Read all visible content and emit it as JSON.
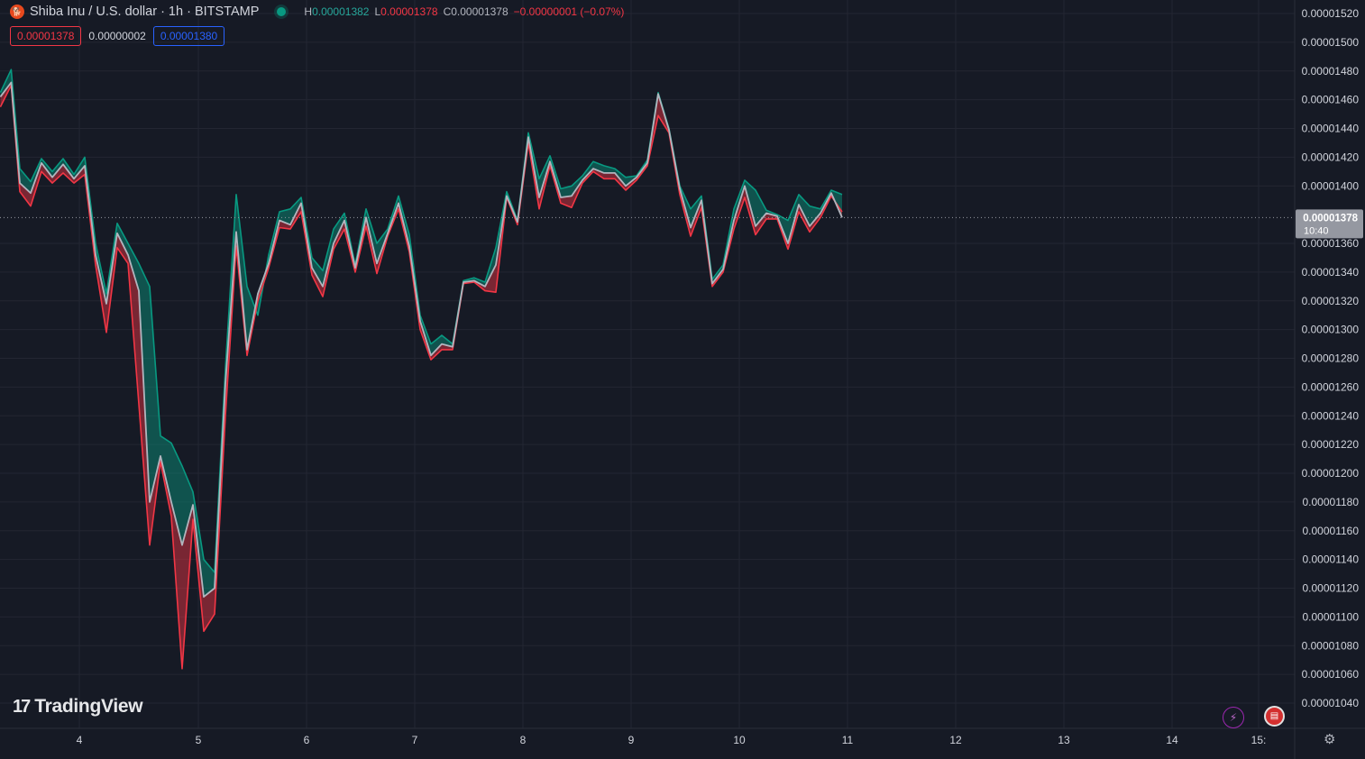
{
  "header": {
    "symbol_icon": "shiba-logo-icon",
    "title": "Shiba Inu / U.S. dollar · 1h · BITSTAMP",
    "high_label": "H",
    "high": "0.00001382",
    "low_label": "L",
    "low": "0.00001378",
    "close_label": "C",
    "close": "0.00001378",
    "change": "−0.00000001 (−0.07%)"
  },
  "badges": {
    "bid": "0.00001378",
    "spread": "0.00000002",
    "ask": "0.00001380"
  },
  "price_tag": {
    "value": "0.00001378",
    "countdown": "10:40"
  },
  "branding": {
    "logo_text": "TradingView"
  },
  "colors": {
    "background": "#161a25",
    "grid": "#232632",
    "up": "#089981",
    "down": "#f23645",
    "line": "#b2b5be",
    "axis_text": "#d1d4dc"
  },
  "chart_data": {
    "type": "area",
    "ylim": [
      1.03e-05,
      1.525e-05
    ],
    "yticks": [
      "0.00001520",
      "0.00001500",
      "0.00001480",
      "0.00001460",
      "0.00001440",
      "0.00001420",
      "0.00001400",
      "0.00001360",
      "0.00001340",
      "0.00001320",
      "0.00001300",
      "0.00001280",
      "0.00001260",
      "0.00001240",
      "0.00001220",
      "0.00001200",
      "0.00001180",
      "0.00001160",
      "0.00001140",
      "0.00001120",
      "0.00001100",
      "0.00001080",
      "0.00001060",
      "0.00001040"
    ],
    "xticks": [
      {
        "label": "4",
        "day": 3.9
      },
      {
        "label": "5",
        "day": 5.0
      },
      {
        "label": "6",
        "day": 6.0
      },
      {
        "label": "7",
        "day": 7.0
      },
      {
        "label": "8",
        "day": 8.0
      },
      {
        "label": "9",
        "day": 9.0
      },
      {
        "label": "10",
        "day": 10.0
      },
      {
        "label": "11",
        "day": 11.0
      },
      {
        "label": "12",
        "day": 12.0
      },
      {
        "label": "13",
        "day": 13.0
      },
      {
        "label": "14",
        "day": 14.0
      },
      {
        "label": "15:",
        "day": 14.8
      }
    ],
    "last_price": 1.378e-05,
    "series": [
      {
        "name": "High",
        "points": [
          [
            3.17,
            1.465e-05
          ],
          [
            3.27,
            1.481e-05
          ],
          [
            3.35,
            1.412e-05
          ],
          [
            3.45,
            1.403e-05
          ],
          [
            3.55,
            1.419e-05
          ],
          [
            3.65,
            1.41e-05
          ],
          [
            3.75,
            1.419e-05
          ],
          [
            3.85,
            1.408e-05
          ],
          [
            3.95,
            1.42e-05
          ],
          [
            4.05,
            1.36e-05
          ],
          [
            4.15,
            1.325e-05
          ],
          [
            4.25,
            1.374e-05
          ],
          [
            4.35,
            1.36e-05
          ],
          [
            4.45,
            1.346e-05
          ],
          [
            4.55,
            1.33e-05
          ],
          [
            4.65,
            1.226e-05
          ],
          [
            4.75,
            1.221e-05
          ],
          [
            4.85,
            1.205e-05
          ],
          [
            4.95,
            1.187e-05
          ],
          [
            5.05,
            1.14e-05
          ],
          [
            5.15,
            1.131e-05
          ],
          [
            5.25,
            1.273e-05
          ],
          [
            5.35,
            1.394e-05
          ],
          [
            5.45,
            1.33e-05
          ],
          [
            5.55,
            1.31e-05
          ],
          [
            5.65,
            1.352e-05
          ],
          [
            5.75,
            1.382e-05
          ],
          [
            5.85,
            1.384e-05
          ],
          [
            5.95,
            1.392e-05
          ],
          [
            6.05,
            1.35e-05
          ],
          [
            6.15,
            1.341e-05
          ],
          [
            6.25,
            1.37e-05
          ],
          [
            6.35,
            1.381e-05
          ],
          [
            6.45,
            1.345e-05
          ],
          [
            6.55,
            1.384e-05
          ],
          [
            6.65,
            1.36e-05
          ],
          [
            6.75,
            1.37e-05
          ],
          [
            6.85,
            1.393e-05
          ],
          [
            6.95,
            1.366e-05
          ],
          [
            7.05,
            1.31e-05
          ],
          [
            7.15,
            1.29e-05
          ],
          [
            7.25,
            1.296e-05
          ],
          [
            7.35,
            1.29e-05
          ],
          [
            7.45,
            1.334e-05
          ],
          [
            7.55,
            1.336e-05
          ],
          [
            7.65,
            1.333e-05
          ],
          [
            7.75,
            1.357e-05
          ],
          [
            7.85,
            1.396e-05
          ],
          [
            7.95,
            1.376e-05
          ],
          [
            8.05,
            1.437e-05
          ],
          [
            8.15,
            1.405e-05
          ],
          [
            8.25,
            1.421e-05
          ],
          [
            8.35,
            1.398e-05
          ],
          [
            8.45,
            1.4e-05
          ],
          [
            8.55,
            1.407e-05
          ],
          [
            8.65,
            1.417e-05
          ],
          [
            8.75,
            1.414e-05
          ],
          [
            8.85,
            1.412e-05
          ],
          [
            8.95,
            1.406e-05
          ],
          [
            9.05,
            1.407e-05
          ],
          [
            9.15,
            1.418e-05
          ],
          [
            9.25,
            1.465e-05
          ],
          [
            9.35,
            1.44e-05
          ],
          [
            9.45,
            1.4e-05
          ],
          [
            9.55,
            1.384e-05
          ],
          [
            9.65,
            1.393e-05
          ],
          [
            9.75,
            1.335e-05
          ],
          [
            9.85,
            1.345e-05
          ],
          [
            9.95,
            1.384e-05
          ],
          [
            10.05,
            1.404e-05
          ],
          [
            10.15,
            1.397e-05
          ],
          [
            10.25,
            1.383e-05
          ],
          [
            10.35,
            1.38e-05
          ],
          [
            10.45,
            1.376e-05
          ],
          [
            10.55,
            1.394e-05
          ],
          [
            10.65,
            1.386e-05
          ],
          [
            10.75,
            1.384e-05
          ],
          [
            10.85,
            1.397e-05
          ],
          [
            10.95,
            1.394e-05
          ]
        ]
      },
      {
        "name": "Low",
        "points": [
          [
            3.17,
            1.455e-05
          ],
          [
            3.27,
            1.47e-05
          ],
          [
            3.35,
            1.396e-05
          ],
          [
            3.45,
            1.386e-05
          ],
          [
            3.55,
            1.41e-05
          ],
          [
            3.65,
            1.402e-05
          ],
          [
            3.75,
            1.409e-05
          ],
          [
            3.85,
            1.402e-05
          ],
          [
            3.95,
            1.408e-05
          ],
          [
            4.05,
            1.345e-05
          ],
          [
            4.15,
            1.298e-05
          ],
          [
            4.25,
            1.357e-05
          ],
          [
            4.35,
            1.346e-05
          ],
          [
            4.45,
            1.248e-05
          ],
          [
            4.55,
            1.15e-05
          ],
          [
            4.65,
            1.208e-05
          ],
          [
            4.75,
            1.17e-05
          ],
          [
            4.85,
            1.064e-05
          ],
          [
            4.95,
            1.168e-05
          ],
          [
            5.05,
            1.09e-05
          ],
          [
            5.15,
            1.102e-05
          ],
          [
            5.25,
            1.24e-05
          ],
          [
            5.35,
            1.358e-05
          ],
          [
            5.45,
            1.282e-05
          ],
          [
            5.55,
            1.32e-05
          ],
          [
            5.65,
            1.343e-05
          ],
          [
            5.75,
            1.371e-05
          ],
          [
            5.85,
            1.37e-05
          ],
          [
            5.95,
            1.382e-05
          ],
          [
            6.05,
            1.338e-05
          ],
          [
            6.15,
            1.323e-05
          ],
          [
            6.25,
            1.356e-05
          ],
          [
            6.35,
            1.37e-05
          ],
          [
            6.45,
            1.34e-05
          ],
          [
            6.55,
            1.372e-05
          ],
          [
            6.65,
            1.339e-05
          ],
          [
            6.75,
            1.365e-05
          ],
          [
            6.85,
            1.384e-05
          ],
          [
            6.95,
            1.354e-05
          ],
          [
            7.05,
            1.3e-05
          ],
          [
            7.15,
            1.279e-05
          ],
          [
            7.25,
            1.286e-05
          ],
          [
            7.35,
            1.286e-05
          ],
          [
            7.45,
            1.332e-05
          ],
          [
            7.55,
            1.333e-05
          ],
          [
            7.65,
            1.327e-05
          ],
          [
            7.75,
            1.326e-05
          ],
          [
            7.85,
            1.392e-05
          ],
          [
            7.95,
            1.373e-05
          ],
          [
            8.05,
            1.43e-05
          ],
          [
            8.15,
            1.384e-05
          ],
          [
            8.25,
            1.414e-05
          ],
          [
            8.35,
            1.388e-05
          ],
          [
            8.45,
            1.385e-05
          ],
          [
            8.55,
            1.402e-05
          ],
          [
            8.65,
            1.41e-05
          ],
          [
            8.75,
            1.405e-05
          ],
          [
            8.85,
            1.405e-05
          ],
          [
            8.95,
            1.397e-05
          ],
          [
            9.05,
            1.404e-05
          ],
          [
            9.15,
            1.414e-05
          ],
          [
            9.25,
            1.449e-05
          ],
          [
            9.35,
            1.437e-05
          ],
          [
            9.45,
            1.394e-05
          ],
          [
            9.55,
            1.365e-05
          ],
          [
            9.65,
            1.385e-05
          ],
          [
            9.75,
            1.33e-05
          ],
          [
            9.85,
            1.34e-05
          ],
          [
            9.95,
            1.37e-05
          ],
          [
            10.05,
            1.392e-05
          ],
          [
            10.15,
            1.366e-05
          ],
          [
            10.25,
            1.377e-05
          ],
          [
            10.35,
            1.377e-05
          ],
          [
            10.45,
            1.356e-05
          ],
          [
            10.55,
            1.382e-05
          ],
          [
            10.65,
            1.368e-05
          ],
          [
            10.75,
            1.378e-05
          ],
          [
            10.85,
            1.393e-05
          ],
          [
            10.95,
            1.382e-05
          ]
        ]
      },
      {
        "name": "Close",
        "points": [
          [
            3.17,
            1.462e-05
          ],
          [
            3.27,
            1.472e-05
          ],
          [
            3.35,
            1.402e-05
          ],
          [
            3.45,
            1.395e-05
          ],
          [
            3.55,
            1.416e-05
          ],
          [
            3.65,
            1.406e-05
          ],
          [
            3.75,
            1.415e-05
          ],
          [
            3.85,
            1.405e-05
          ],
          [
            3.95,
            1.414e-05
          ],
          [
            4.05,
            1.352e-05
          ],
          [
            4.15,
            1.318e-05
          ],
          [
            4.25,
            1.367e-05
          ],
          [
            4.35,
            1.352e-05
          ],
          [
            4.45,
            1.327e-05
          ],
          [
            4.55,
            1.18e-05
          ],
          [
            4.65,
            1.212e-05
          ],
          [
            4.75,
            1.18e-05
          ],
          [
            4.85,
            1.15e-05
          ],
          [
            4.95,
            1.178e-05
          ],
          [
            5.05,
            1.114e-05
          ],
          [
            5.15,
            1.12e-05
          ],
          [
            5.25,
            1.262e-05
          ],
          [
            5.35,
            1.368e-05
          ],
          [
            5.45,
            1.286e-05
          ],
          [
            5.55,
            1.325e-05
          ],
          [
            5.65,
            1.346e-05
          ],
          [
            5.75,
            1.376e-05
          ],
          [
            5.85,
            1.373e-05
          ],
          [
            5.95,
            1.388e-05
          ],
          [
            6.05,
            1.343e-05
          ],
          [
            6.15,
            1.33e-05
          ],
          [
            6.25,
            1.36e-05
          ],
          [
            6.35,
            1.376e-05
          ],
          [
            6.45,
            1.343e-05
          ],
          [
            6.55,
            1.378e-05
          ],
          [
            6.65,
            1.346e-05
          ],
          [
            6.75,
            1.367e-05
          ],
          [
            6.85,
            1.388e-05
          ],
          [
            6.95,
            1.358e-05
          ],
          [
            7.05,
            1.306e-05
          ],
          [
            7.15,
            1.282e-05
          ],
          [
            7.25,
            1.29e-05
          ],
          [
            7.35,
            1.288e-05
          ],
          [
            7.45,
            1.333e-05
          ],
          [
            7.55,
            1.334e-05
          ],
          [
            7.65,
            1.33e-05
          ],
          [
            7.75,
            1.345e-05
          ],
          [
            7.85,
            1.393e-05
          ],
          [
            7.95,
            1.375e-05
          ],
          [
            8.05,
            1.434e-05
          ],
          [
            8.15,
            1.392e-05
          ],
          [
            8.25,
            1.417e-05
          ],
          [
            8.35,
            1.392e-05
          ],
          [
            8.45,
            1.393e-05
          ],
          [
            8.55,
            1.404e-05
          ],
          [
            8.65,
            1.412e-05
          ],
          [
            8.75,
            1.409e-05
          ],
          [
            8.85,
            1.409e-05
          ],
          [
            8.95,
            1.4e-05
          ],
          [
            9.05,
            1.406e-05
          ],
          [
            9.15,
            1.416e-05
          ],
          [
            9.25,
            1.464e-05
          ],
          [
            9.35,
            1.439e-05
          ],
          [
            9.45,
            1.398e-05
          ],
          [
            9.55,
            1.371e-05
          ],
          [
            9.65,
            1.39e-05
          ],
          [
            9.75,
            1.332e-05
          ],
          [
            9.85,
            1.342e-05
          ],
          [
            9.95,
            1.376e-05
          ],
          [
            10.05,
            1.4e-05
          ],
          [
            10.15,
            1.372e-05
          ],
          [
            10.25,
            1.381e-05
          ],
          [
            10.35,
            1.379e-05
          ],
          [
            10.45,
            1.36e-05
          ],
          [
            10.55,
            1.387e-05
          ],
          [
            10.65,
            1.372e-05
          ],
          [
            10.75,
            1.381e-05
          ],
          [
            10.85,
            1.395e-05
          ],
          [
            10.95,
            1.378e-05
          ]
        ]
      }
    ]
  }
}
